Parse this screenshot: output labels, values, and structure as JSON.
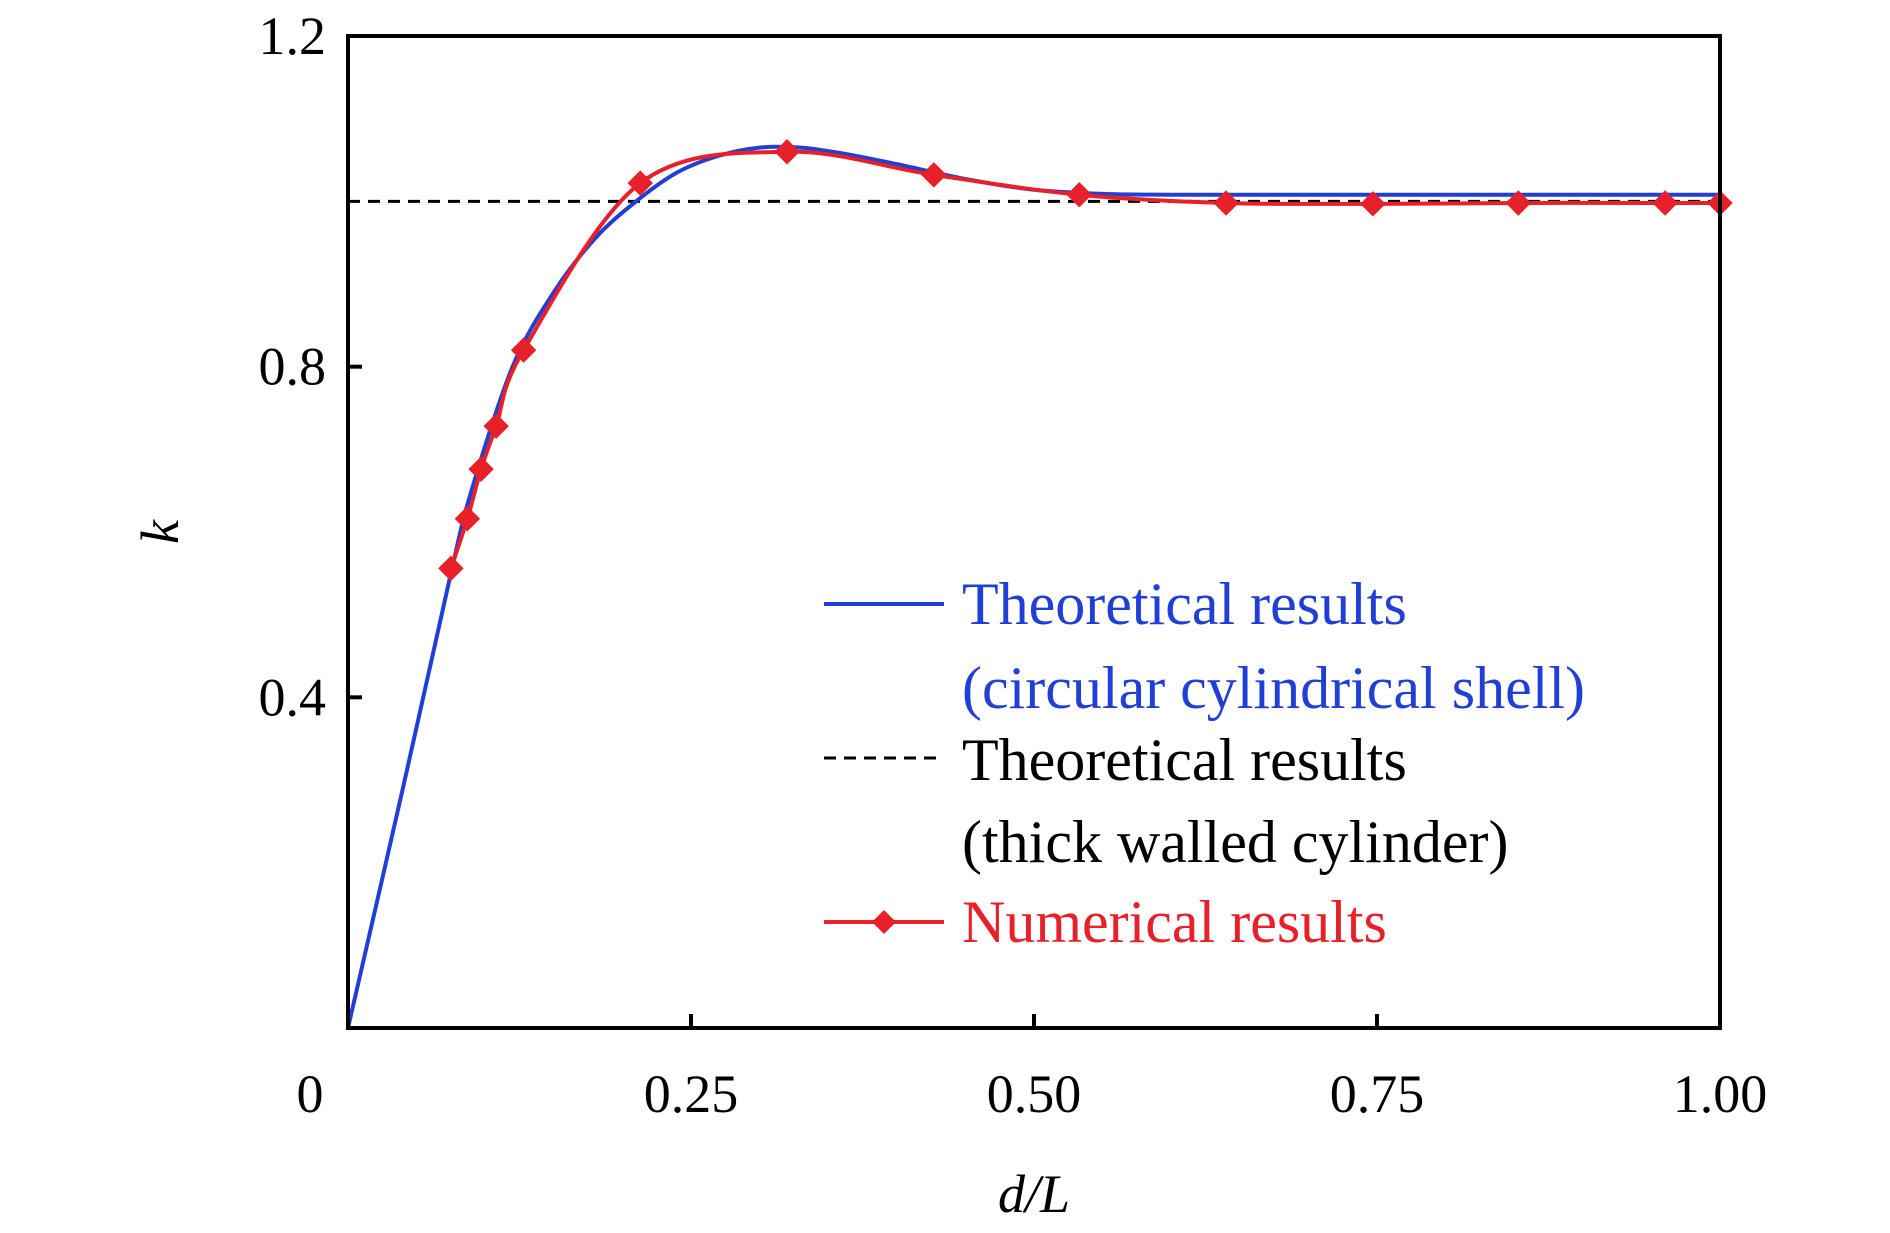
{
  "chart_data": {
    "type": "line",
    "xlabel": "d/L",
    "ylabel": "k",
    "xlim": [
      0,
      1.0
    ],
    "ylim": [
      0,
      1.2
    ],
    "x_ticks": [
      {
        "value": 0,
        "label": "0"
      },
      {
        "value": 0.25,
        "label": "0.25"
      },
      {
        "value": 0.5,
        "label": "0.50"
      },
      {
        "value": 0.75,
        "label": "0.75"
      },
      {
        "value": 1.0,
        "label": "1.00"
      }
    ],
    "y_ticks": [
      {
        "value": 0.4,
        "label": "0.4"
      },
      {
        "value": 0.8,
        "label": "0.8"
      },
      {
        "value": 1.2,
        "label": "1.2"
      }
    ],
    "grid": false,
    "legend_position": "bottom-right",
    "series": [
      {
        "name": "Theoretical results (circular cylindrical shell)",
        "legend_lines": [
          "Theoretical results",
          "(circular cylindrical shell)"
        ],
        "color": "#1f3fd6",
        "style": "solid",
        "marker": "none",
        "x": [
          0,
          0.04,
          0.075,
          0.09,
          0.12,
          0.15,
          0.18,
          0.21,
          0.24,
          0.27,
          0.3,
          0.33,
          0.36,
          0.4,
          0.45,
          0.5,
          0.55,
          0.6,
          0.7,
          0.8,
          0.9,
          1.0
        ],
        "y": [
          0,
          0.29,
          0.55,
          0.65,
          0.8,
          0.89,
          0.955,
          1.0,
          1.035,
          1.055,
          1.065,
          1.065,
          1.058,
          1.045,
          1.027,
          1.014,
          1.009,
          1.008,
          1.008,
          1.008,
          1.008,
          1.008
        ]
      },
      {
        "name": "Theoretical results (thick walled cylinder)",
        "legend_lines": [
          "Theoretical results",
          "(thick walled cylinder)"
        ],
        "color": "#000000",
        "style": "dashed",
        "marker": "none",
        "x": [
          0,
          1.0
        ],
        "y": [
          1.0,
          1.0
        ]
      },
      {
        "name": "Numerical results",
        "legend_lines": [
          "Numerical results"
        ],
        "color": "#e8202a",
        "style": "solid",
        "marker": "diamond",
        "x": [
          0.075,
          0.087,
          0.097,
          0.108,
          0.128,
          0.213,
          0.32,
          0.427,
          0.533,
          0.64,
          0.747,
          0.853,
          0.96,
          1.0
        ],
        "y": [
          0.556,
          0.616,
          0.676,
          0.728,
          0.82,
          1.022,
          1.06,
          1.032,
          1.008,
          0.998,
          0.997,
          0.998,
          0.998,
          0.998
        ]
      }
    ]
  }
}
